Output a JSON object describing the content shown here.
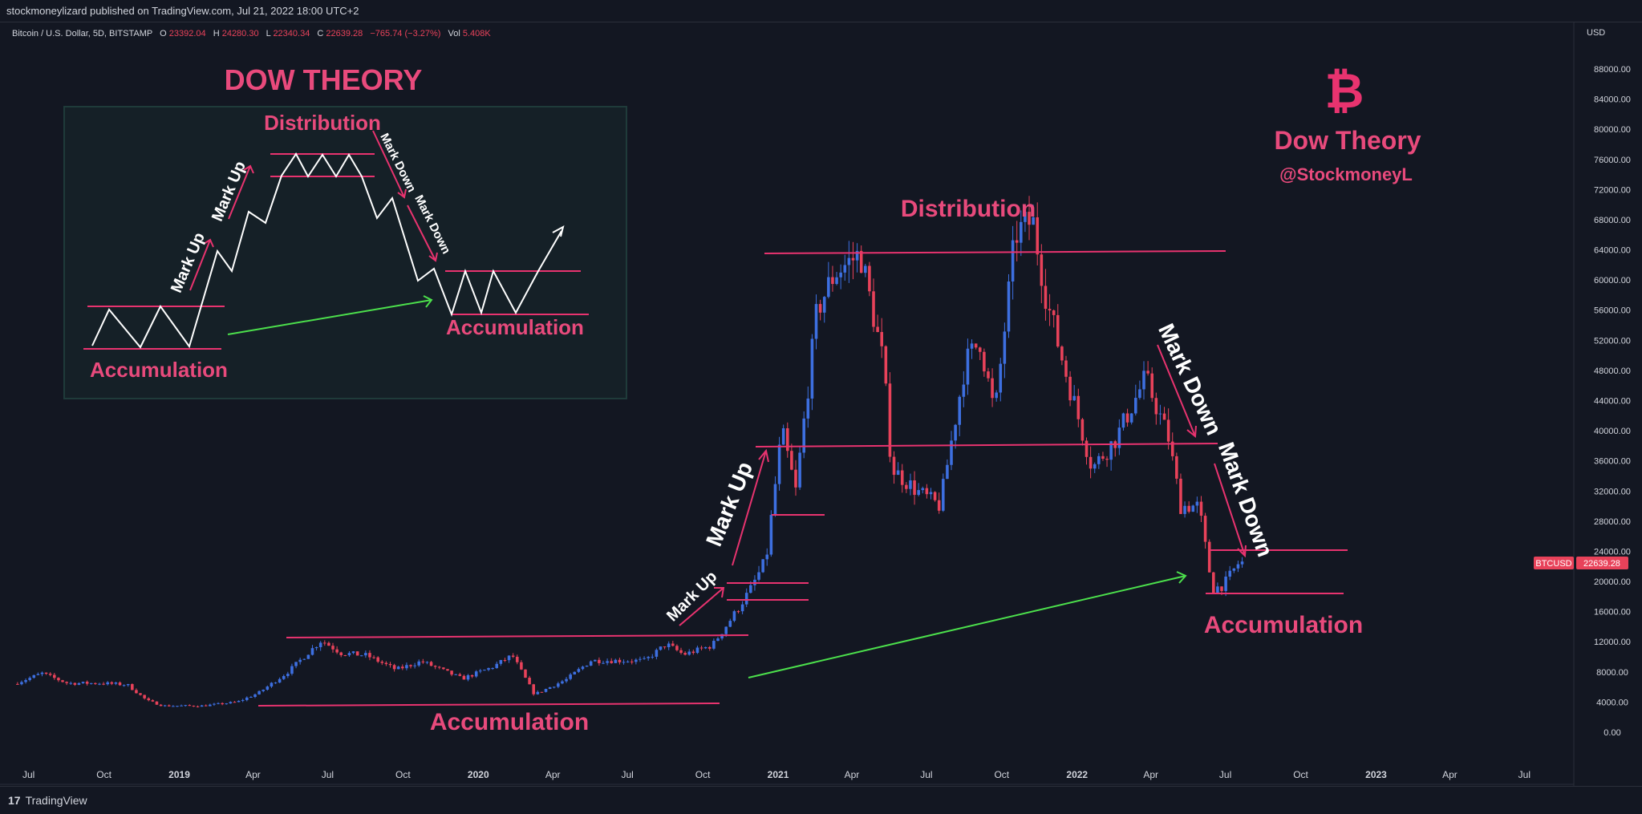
{
  "header": {
    "published_text": "stockmoneylizard published on TradingView.com, Jul 21, 2022 18:00 UTC+2"
  },
  "legend": {
    "symbol": "Bitcoin / U.S. Dollar, 5D, BITSTAMP",
    "o_label": "O",
    "o_value": "23392.04",
    "h_label": "H",
    "h_value": "24280.30",
    "l_label": "L",
    "l_value": "22340.34",
    "c_label": "C",
    "c_value": "22639.28",
    "change": "−765.74 (−3.27%)",
    "vol_label": "Vol",
    "vol_value": "5.408K"
  },
  "footer": {
    "brand": "TradingView",
    "logo_glyph": "17"
  },
  "price_tag": {
    "symbol": "BTCUSD",
    "value": "22639.28"
  },
  "colors": {
    "background": "#131722",
    "up": "#3d6fe0",
    "down": "#e8425a",
    "annotation_pink": "#e84a7c",
    "annotation_line": "#e8336f",
    "annotation_green": "#4ce04c",
    "axis_text": "#d1d4dc"
  },
  "annotations": {
    "title_dow": "DOW THEORY",
    "brand_title": "Dow Theory",
    "brand_handle": "@StockmoneyL",
    "bitcoin_glyph": "₿",
    "accumulation": "Accumulation",
    "distribution": "Distribution",
    "mark_up": "Mark Up",
    "mark_down": "Mark Down"
  },
  "chart_data": {
    "type": "candlestick",
    "title": "Bitcoin / U.S. Dollar, 5D, BITSTAMP",
    "currency": "USD",
    "ylim": [
      0,
      90000
    ],
    "y_ticks": [
      "0.00",
      "4000.00",
      "8000.00",
      "12000.00",
      "16000.00",
      "20000.00",
      "24000.00",
      "28000.00",
      "32000.00",
      "36000.00",
      "40000.00",
      "44000.00",
      "48000.00",
      "52000.00",
      "56000.00",
      "60000.00",
      "64000.00",
      "68000.00",
      "72000.00",
      "76000.00",
      "80000.00",
      "84000.00",
      "88000.00"
    ],
    "x_ticks": [
      "Jul",
      "Oct",
      "2019",
      "Apr",
      "Jul",
      "Oct",
      "2020",
      "Apr",
      "Jul",
      "Oct",
      "2021",
      "Apr",
      "Jul",
      "Oct",
      "2022",
      "Apr",
      "Jul",
      "Oct",
      "2023",
      "Apr",
      "Jul"
    ],
    "last_price": 22639.28,
    "price_path": [
      [
        "2018-06-15",
        6400
      ],
      [
        "2018-07-20",
        7800
      ],
      [
        "2018-08-20",
        6500
      ],
      [
        "2018-10-01",
        6500
      ],
      [
        "2018-11-01",
        6300
      ],
      [
        "2018-11-25",
        4200
      ],
      [
        "2018-12-15",
        3500
      ],
      [
        "2019-02-01",
        3500
      ],
      [
        "2019-03-15",
        4000
      ],
      [
        "2019-04-10",
        5200
      ],
      [
        "2019-05-15",
        7900
      ],
      [
        "2019-06-26",
        12200
      ],
      [
        "2019-07-20",
        10500
      ],
      [
        "2019-08-20",
        10200
      ],
      [
        "2019-09-25",
        8300
      ],
      [
        "2019-10-26",
        9400
      ],
      [
        "2019-12-15",
        7100
      ],
      [
        "2020-01-20",
        8600
      ],
      [
        "2020-02-14",
        10200
      ],
      [
        "2020-03-12",
        5000
      ],
      [
        "2020-04-20",
        7000
      ],
      [
        "2020-05-20",
        9500
      ],
      [
        "2020-07-25",
        9500
      ],
      [
        "2020-08-20",
        11700
      ],
      [
        "2020-09-10",
        10300
      ],
      [
        "2020-10-15",
        11500
      ],
      [
        "2020-11-10",
        15500
      ],
      [
        "2020-12-01",
        19000
      ],
      [
        "2020-12-20",
        23000
      ],
      [
        "2021-01-08",
        40000
      ],
      [
        "2021-01-25",
        32000
      ],
      [
        "2021-02-20",
        56000
      ],
      [
        "2021-03-14",
        61000
      ],
      [
        "2021-04-14",
        63500
      ],
      [
        "2021-05-12",
        49000
      ],
      [
        "2021-05-22",
        35000
      ],
      [
        "2021-06-22",
        32000
      ],
      [
        "2021-07-20",
        30000
      ],
      [
        "2021-08-20",
        49000
      ],
      [
        "2021-09-07",
        52000
      ],
      [
        "2021-09-25",
        42000
      ],
      [
        "2021-10-20",
        66000
      ],
      [
        "2021-11-10",
        68000
      ],
      [
        "2021-11-28",
        57000
      ],
      [
        "2021-12-20",
        48000
      ],
      [
        "2022-01-22",
        35000
      ],
      [
        "2022-02-20",
        39000
      ],
      [
        "2022-03-28",
        47000
      ],
      [
        "2022-04-25",
        39000
      ],
      [
        "2022-05-10",
        30000
      ],
      [
        "2022-06-01",
        30000
      ],
      [
        "2022-06-13",
        22000
      ],
      [
        "2022-06-18",
        19000
      ],
      [
        "2022-07-01",
        19500
      ],
      [
        "2022-07-21",
        22639
      ]
    ]
  }
}
